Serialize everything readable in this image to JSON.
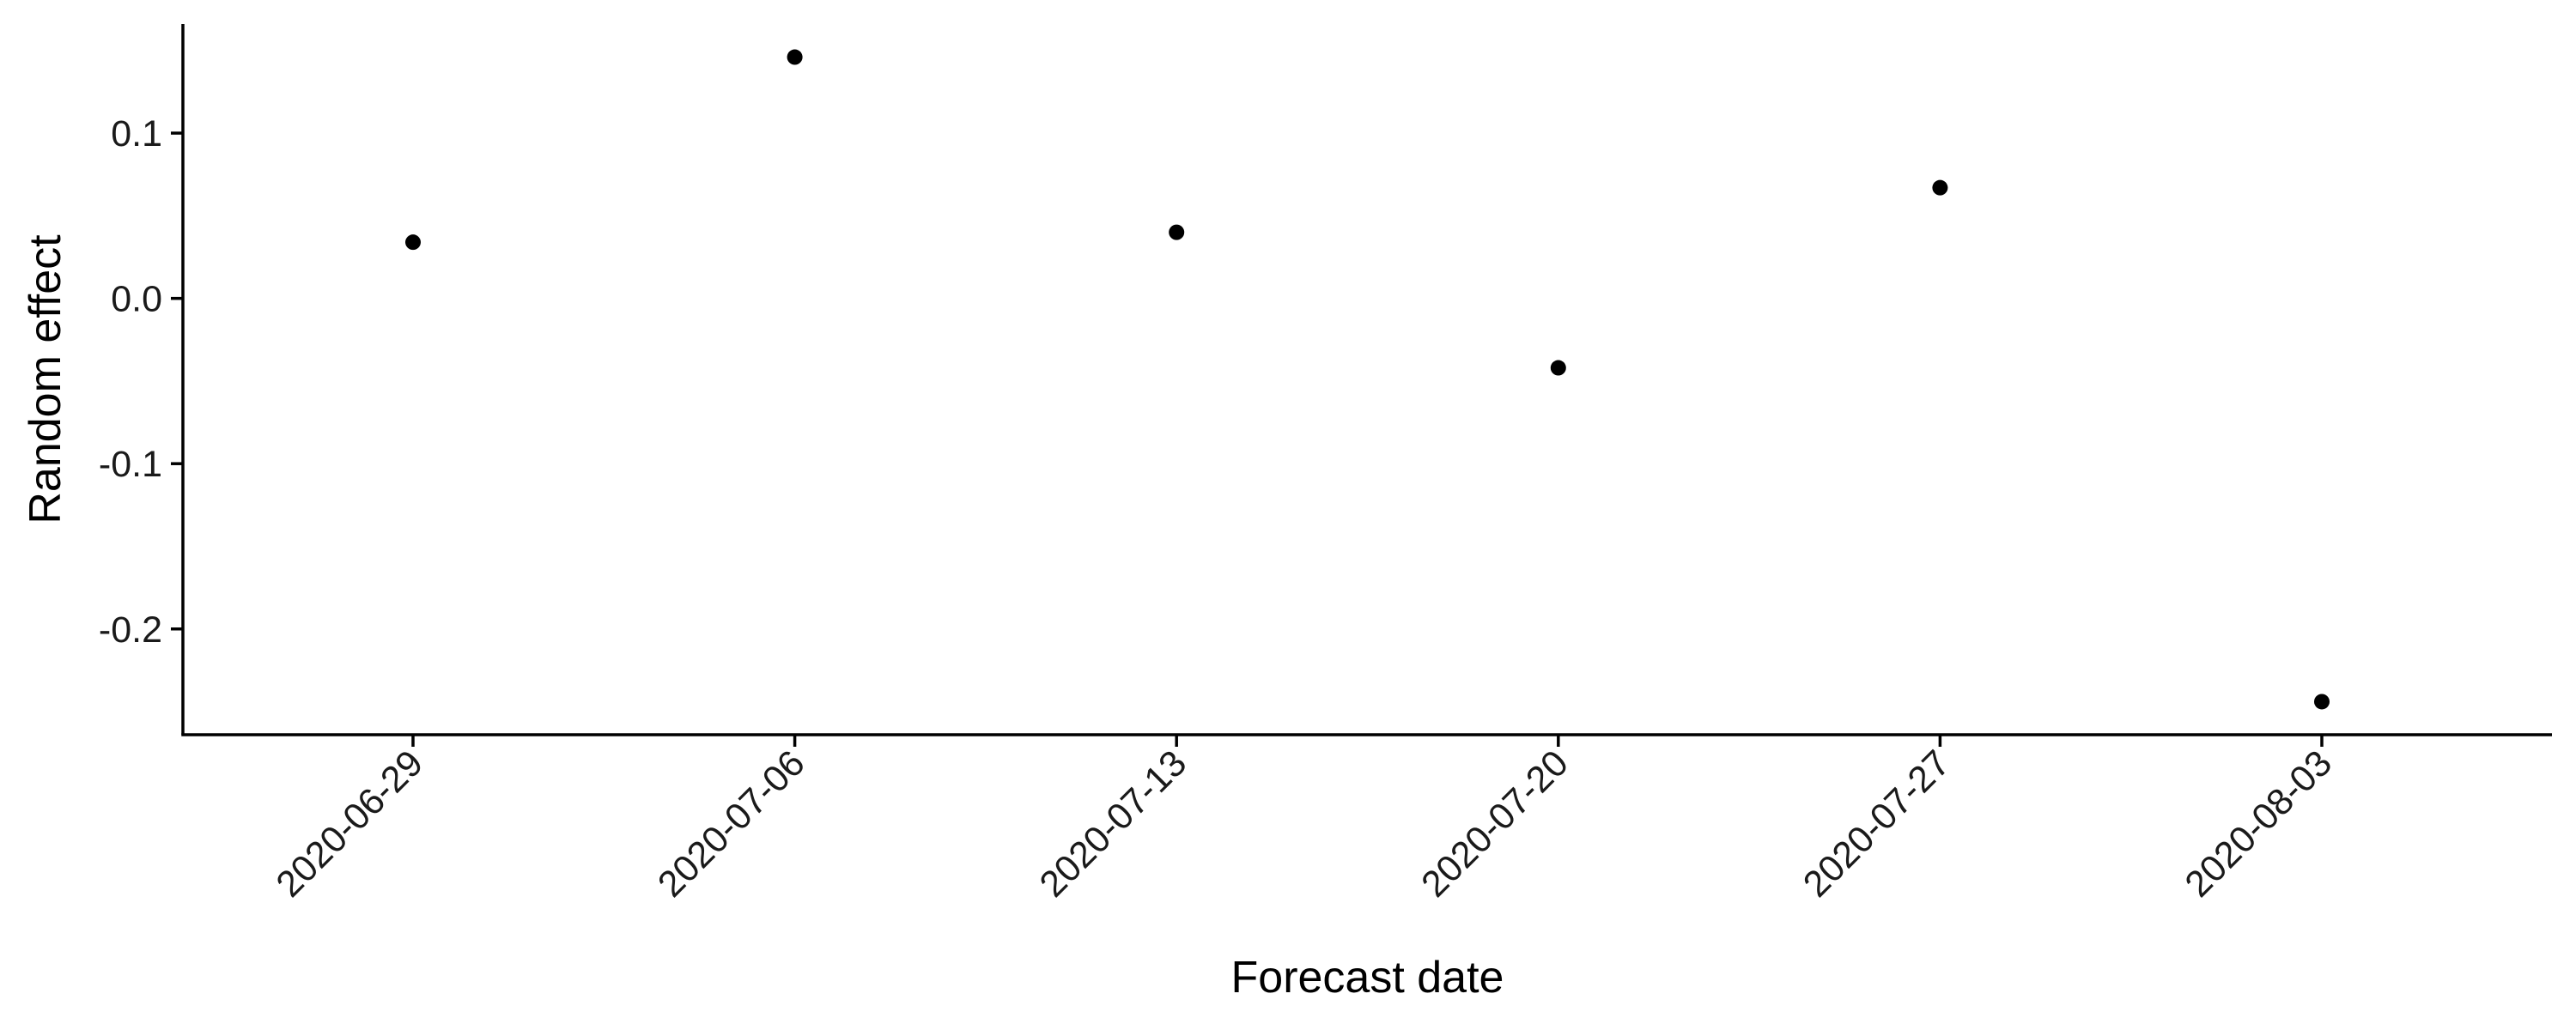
{
  "chart_data": {
    "type": "scatter",
    "xlabel": "Forecast date",
    "ylabel": "Random effect",
    "x": [
      "2020-06-29",
      "2020-07-06",
      "2020-07-13",
      "2020-07-20",
      "2020-07-27",
      "2020-08-03"
    ],
    "y": [
      0.034,
      0.146,
      0.04,
      -0.042,
      0.067,
      -0.244
    ],
    "yticks": [
      0.1,
      0.0,
      -0.1,
      -0.2
    ],
    "ytick_labels": [
      "0.1",
      "0.0",
      "-0.1",
      "-0.2"
    ],
    "xtick_labels": [
      "2020-06-29",
      "2020-07-06",
      "2020-07-13",
      "2020-07-20",
      "2020-07-27",
      "2020-08-03"
    ],
    "ylim": [
      -0.264,
      0.166
    ],
    "grid": false,
    "legend": "none",
    "point_color": "#000000"
  }
}
